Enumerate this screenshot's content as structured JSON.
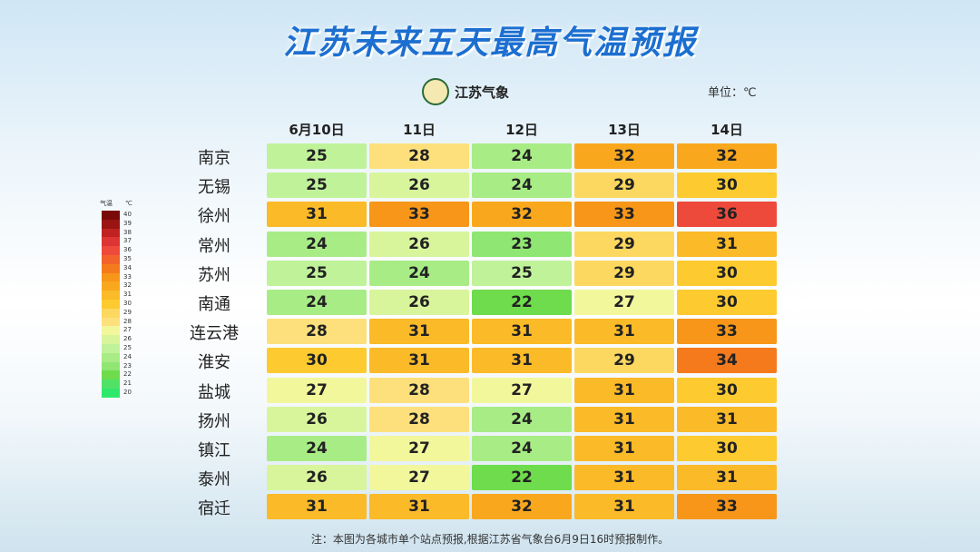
{
  "header": {
    "title": "江苏未来五天最高气温预报",
    "logo_text": "江苏气象",
    "unit": "单位：℃"
  },
  "table": {
    "columns": [
      "6月10日",
      "11日",
      "12日",
      "13日",
      "14日"
    ],
    "rows": [
      {
        "city": "南京",
        "values": [
          25,
          28,
          24,
          32,
          32
        ]
      },
      {
        "city": "无锡",
        "values": [
          25,
          26,
          24,
          29,
          30
        ]
      },
      {
        "city": "徐州",
        "values": [
          31,
          33,
          32,
          33,
          36
        ]
      },
      {
        "city": "常州",
        "values": [
          24,
          26,
          23,
          29,
          31
        ]
      },
      {
        "city": "苏州",
        "values": [
          25,
          24,
          25,
          29,
          30
        ]
      },
      {
        "city": "南通",
        "values": [
          24,
          26,
          22,
          27,
          30
        ]
      },
      {
        "city": "连云港",
        "values": [
          28,
          31,
          31,
          31,
          33
        ]
      },
      {
        "city": "淮安",
        "values": [
          30,
          31,
          31,
          29,
          34
        ]
      },
      {
        "city": "盐城",
        "values": [
          27,
          28,
          27,
          31,
          30
        ]
      },
      {
        "city": "扬州",
        "values": [
          26,
          28,
          24,
          31,
          31
        ]
      },
      {
        "city": "镇江",
        "values": [
          24,
          27,
          24,
          31,
          30
        ]
      },
      {
        "city": "泰州",
        "values": [
          26,
          27,
          22,
          31,
          31
        ]
      },
      {
        "city": "宿迁",
        "values": [
          31,
          31,
          32,
          31,
          33
        ]
      }
    ]
  },
  "legend": {
    "title": "气温",
    "unit": "℃",
    "levels": [
      {
        "value": 40,
        "color": "#7a0a0a"
      },
      {
        "value": 39,
        "color": "#9a1414"
      },
      {
        "value": 38,
        "color": "#c02222"
      },
      {
        "value": 37,
        "color": "#de3434"
      },
      {
        "value": 36,
        "color": "#ee4a3c"
      },
      {
        "value": 35,
        "color": "#f2622a"
      },
      {
        "value": 34,
        "color": "#f57a1c"
      },
      {
        "value": 33,
        "color": "#f79618"
      },
      {
        "value": 32,
        "color": "#f9a81e"
      },
      {
        "value": 31,
        "color": "#fbba28"
      },
      {
        "value": 30,
        "color": "#fdcb30"
      },
      {
        "value": 29,
        "color": "#fdd860"
      },
      {
        "value": 28,
        "color": "#fde07c"
      },
      {
        "value": 27,
        "color": "#f2f79c"
      },
      {
        "value": 26,
        "color": "#d8f59c"
      },
      {
        "value": 25,
        "color": "#c0f29a"
      },
      {
        "value": 24,
        "color": "#a8ec86"
      },
      {
        "value": 23,
        "color": "#90e672"
      },
      {
        "value": 22,
        "color": "#6edc4c"
      },
      {
        "value": 21,
        "color": "#50e266"
      },
      {
        "value": 20,
        "color": "#2ee86c"
      }
    ]
  },
  "footnote": "注：本图为各城市单个站点预报,根据江苏省气象台6月9日16时预报制作。"
}
